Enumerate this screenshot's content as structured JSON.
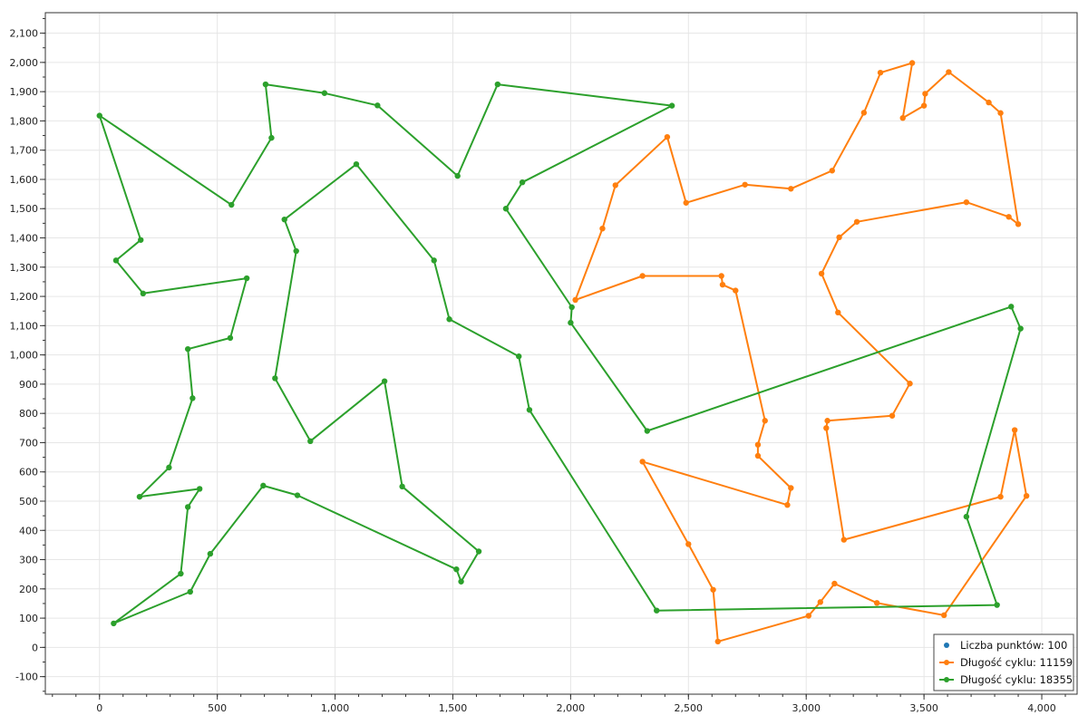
{
  "chart_data": {
    "type": "line",
    "title": "",
    "xlabel": "",
    "ylabel": "",
    "xlim": [
      -230,
      4150
    ],
    "ylim": [
      -160,
      2170
    ],
    "x_ticks": [
      0,
      500,
      1000,
      1500,
      2000,
      2500,
      3000,
      3500,
      4000
    ],
    "x_tick_labels": [
      "0",
      "500",
      "1,000",
      "1,500",
      "2,000",
      "2,500",
      "3,000",
      "3,500",
      "4,000"
    ],
    "y_ticks": [
      -100,
      0,
      100,
      200,
      300,
      400,
      500,
      600,
      700,
      800,
      900,
      1000,
      1100,
      1200,
      1300,
      1400,
      1500,
      1600,
      1700,
      1800,
      1900,
      2000,
      2100
    ],
    "y_tick_labels": [
      "-100",
      "0",
      "100",
      "200",
      "300",
      "400",
      "500",
      "600",
      "700",
      "800",
      "900",
      "1,000",
      "1,100",
      "1,200",
      "1,300",
      "1,400",
      "1,500",
      "1,600",
      "1,700",
      "1,800",
      "1,900",
      "2,000",
      "2,100"
    ],
    "x_minor_step": 100,
    "y_minor_step": 50,
    "grid": true,
    "legend_position": "bottom-right",
    "legend": [
      {
        "label": "Liczba punktów: 100",
        "color": "#1f77b4",
        "style": "marker"
      },
      {
        "label": "Długość cyklu: 11159",
        "color": "#ff7f0e",
        "style": "line-marker"
      },
      {
        "label": "Długość cyklu: 18355",
        "color": "#2ca02c",
        "style": "line-marker"
      }
    ],
    "series": [
      {
        "name": "Liczba punktów: 100",
        "color": "#1f77b4",
        "closed": false,
        "points": []
      },
      {
        "name": "Długość cyklu: 11159",
        "color": "#ff7f0e",
        "closed": true,
        "points": [
          [
            2020,
            1188
          ],
          [
            2135,
            1432
          ],
          [
            2190,
            1580
          ],
          [
            2410,
            1745
          ],
          [
            2490,
            1520
          ],
          [
            2740,
            1582
          ],
          [
            2935,
            1568
          ],
          [
            3110,
            1630
          ],
          [
            3245,
            1828
          ],
          [
            3315,
            1965
          ],
          [
            3450,
            1998
          ],
          [
            3410,
            1810
          ],
          [
            3500,
            1852
          ],
          [
            3505,
            1893
          ],
          [
            3605,
            1967
          ],
          [
            3775,
            1863
          ],
          [
            3825,
            1827
          ],
          [
            3900,
            1447
          ],
          [
            3860,
            1472
          ],
          [
            3680,
            1522
          ],
          [
            3215,
            1455
          ],
          [
            3140,
            1402
          ],
          [
            3065,
            1278
          ],
          [
            3135,
            1145
          ],
          [
            3440,
            902
          ],
          [
            3365,
            792
          ],
          [
            3090,
            775
          ],
          [
            3085,
            750
          ],
          [
            3160,
            368
          ],
          [
            3825,
            515
          ],
          [
            3885,
            743
          ],
          [
            3935,
            518
          ],
          [
            3585,
            110
          ],
          [
            3300,
            152
          ],
          [
            3120,
            218
          ],
          [
            3060,
            155
          ],
          [
            3010,
            108
          ],
          [
            2625,
            20
          ],
          [
            2605,
            197
          ],
          [
            2500,
            353
          ],
          [
            2305,
            635
          ],
          [
            2920,
            487
          ],
          [
            2935,
            545
          ],
          [
            2795,
            655
          ],
          [
            2795,
            693
          ],
          [
            2825,
            775
          ],
          [
            2700,
            1220
          ],
          [
            2645,
            1240
          ],
          [
            2640,
            1270
          ],
          [
            2305,
            1270
          ]
        ]
      },
      {
        "name": "Długość cyklu: 18355",
        "color": "#2ca02c",
        "closed": true,
        "points": [
          [
            0,
            1818
          ],
          [
            560,
            1513
          ],
          [
            730,
            1742
          ],
          [
            705,
            1925
          ],
          [
            955,
            1895
          ],
          [
            1180,
            1853
          ],
          [
            1520,
            1612
          ],
          [
            1690,
            1925
          ],
          [
            2430,
            1852
          ],
          [
            1795,
            1590
          ],
          [
            1725,
            1500
          ],
          [
            2005,
            1163
          ],
          [
            2000,
            1110
          ],
          [
            2325,
            740
          ],
          [
            3870,
            1165
          ],
          [
            3910,
            1090
          ],
          [
            3680,
            447
          ],
          [
            3810,
            145
          ],
          [
            2365,
            126
          ],
          [
            1825,
            812
          ],
          [
            1780,
            995
          ],
          [
            1485,
            1122
          ],
          [
            1420,
            1323
          ],
          [
            1090,
            1652
          ],
          [
            785,
            1463
          ],
          [
            835,
            1355
          ],
          [
            745,
            920
          ],
          [
            895,
            705
          ],
          [
            1210,
            910
          ],
          [
            1285,
            550
          ],
          [
            1610,
            328
          ],
          [
            1535,
            225
          ],
          [
            1515,
            267
          ],
          [
            840,
            520
          ],
          [
            695,
            553
          ],
          [
            470,
            320
          ],
          [
            385,
            190
          ],
          [
            60,
            82
          ],
          [
            345,
            252
          ],
          [
            375,
            480
          ],
          [
            425,
            542
          ],
          [
            170,
            515
          ],
          [
            295,
            615
          ],
          [
            395,
            852
          ],
          [
            375,
            1020
          ],
          [
            555,
            1058
          ],
          [
            625,
            1262
          ],
          [
            185,
            1210
          ],
          [
            70,
            1323
          ],
          [
            175,
            1393
          ]
        ]
      }
    ]
  }
}
